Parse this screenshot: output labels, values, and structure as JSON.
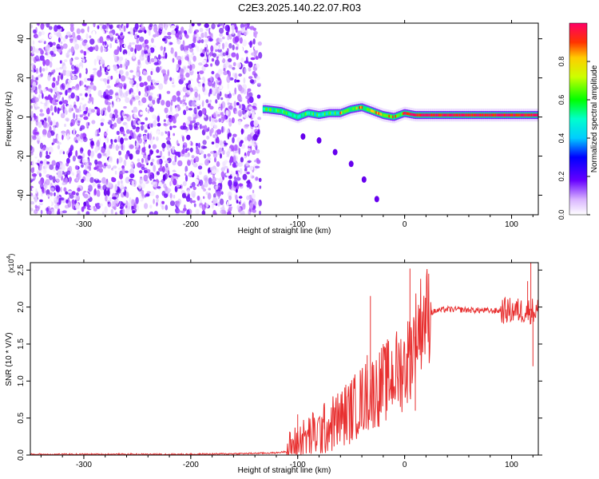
{
  "title": "C2E3.2025.140.22.07.R03",
  "chart_data": [
    {
      "type": "heatmap",
      "title": "C2E3.2025.140.22.07.R03",
      "xlabel": "Height of straight line (km)",
      "ylabel": "Frequency (Hz)",
      "xlim": [
        -350,
        125
      ],
      "ylim": [
        -50,
        48
      ],
      "x_ticks": [
        -300,
        -200,
        -100,
        0,
        100
      ],
      "y_ticks": [
        -40,
        -20,
        0,
        20,
        40
      ],
      "colorbar": {
        "label": "Normalized spectral amplitude",
        "range": [
          0.0,
          1.0
        ],
        "ticks": [
          0.0,
          0.2,
          0.4,
          0.6,
          0.8
        ]
      },
      "features": {
        "noise_region_x": [
          -350,
          -135
        ],
        "signal_band_center_hz": [
          [
            -130,
            4
          ],
          [
            -115,
            3
          ],
          [
            -100,
            0
          ],
          [
            -90,
            2
          ],
          [
            -80,
            1
          ],
          [
            -70,
            2
          ],
          [
            -60,
            2
          ],
          [
            -50,
            4
          ],
          [
            -40,
            5
          ],
          [
            -30,
            3
          ],
          [
            -20,
            1
          ],
          [
            -10,
            0
          ],
          [
            0,
            2
          ],
          [
            10,
            1
          ],
          [
            30,
            1
          ],
          [
            60,
            1
          ],
          [
            90,
            1
          ],
          [
            110,
            1
          ],
          [
            125,
            1
          ]
        ],
        "aliased_branch_hz": [
          [
            -95,
            -10
          ],
          [
            -80,
            -12
          ],
          [
            -65,
            -18
          ],
          [
            -50,
            -24
          ],
          [
            -38,
            -32
          ],
          [
            -26,
            -42
          ]
        ]
      }
    },
    {
      "type": "line",
      "xlabel": "Height of straight line (km)",
      "ylabel": "SNR (10 * V/V)",
      "y_multiplier_label": "(x10",
      "y_multiplier_exponent": "4",
      "y_multiplier_close": ")",
      "xlim": [
        -350,
        125
      ],
      "ylim": [
        0,
        2.6
      ],
      "x_ticks": [
        -300,
        -200,
        -100,
        0,
        100
      ],
      "y_ticks": [
        0.0,
        0.5,
        1.0,
        1.5,
        2.0,
        2.5
      ],
      "y_tick_labels": [
        "0.0",
        "0.5",
        "1.0",
        "1.5",
        "2.0",
        "2.5"
      ],
      "color": "#e83030",
      "series": [
        {
          "name": "SNR",
          "x": [
            -350,
            -300,
            -250,
            -200,
            -150,
            -120,
            -110,
            -100,
            -90,
            -80,
            -70,
            -60,
            -50,
            -40,
            -30,
            -20,
            -10,
            0,
            5,
            10,
            15,
            20,
            30,
            40,
            60,
            80,
            100,
            110,
            115,
            120,
            125
          ],
          "y": [
            0.01,
            0.01,
            0.01,
            0.01,
            0.02,
            0.03,
            0.05,
            0.15,
            0.25,
            0.3,
            0.4,
            0.5,
            0.6,
            0.75,
            0.85,
            0.95,
            1.1,
            1.2,
            1.35,
            1.6,
            1.8,
            1.9,
            1.95,
            1.97,
            1.96,
            1.95,
            1.95,
            1.95,
            1.95,
            1.95,
            1.95
          ]
        }
      ],
      "peaks": [
        [
          -100,
          0.55
        ],
        [
          -75,
          0.65
        ],
        [
          -55,
          0.95
        ],
        [
          -35,
          1.35
        ],
        [
          -32,
          2.15
        ],
        [
          -20,
          1.5
        ],
        [
          5,
          2.52
        ],
        [
          10,
          0.6
        ],
        [
          115,
          2.35
        ],
        [
          118,
          2.6
        ],
        [
          120,
          1.2
        ]
      ]
    }
  ]
}
